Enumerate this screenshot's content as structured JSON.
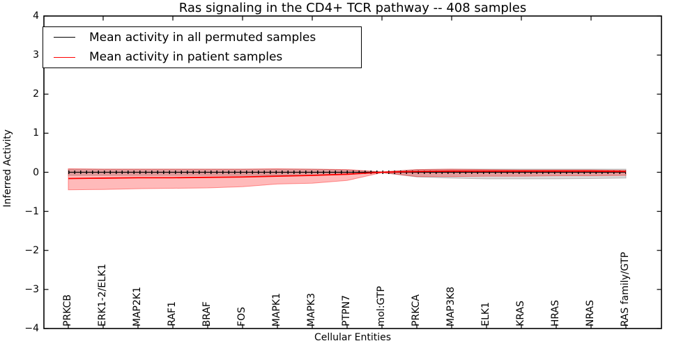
{
  "chart_data": {
    "type": "line",
    "title": "Ras signaling in the CD4+ TCR pathway -- 408 samples",
    "xlabel": "Cellular Entities",
    "ylabel": "Inferred Activity",
    "ylim": [
      -4,
      4
    ],
    "yticks": [
      4,
      3,
      2,
      1,
      0,
      -1,
      -2,
      -3,
      -4
    ],
    "ytick_labels": [
      "4",
      "3",
      "2",
      "1",
      "0",
      "−1",
      "−2",
      "−3",
      "−4"
    ],
    "categories": [
      "PRKCB",
      "ERK1-2/ELK1",
      "MAP2K1",
      "RAF1",
      "BRAF",
      "FOS",
      "MAPK1",
      "MAPK3",
      "PTPN7",
      "mol:GTP",
      "PRKCA",
      "MAP3K8",
      "ELK1",
      "KRAS",
      "HRAS",
      "NRAS",
      "RAS family/GTP"
    ],
    "grid": false,
    "legend_position": "upper left",
    "series": [
      {
        "name": "Mean activity in all permuted samples",
        "color": "#000000",
        "band_color": "rgba(0,0,0,0.15)",
        "band_edge": "rgba(0,0,0,0.22)",
        "marker": "|",
        "mean": [
          0,
          0,
          0,
          0,
          0,
          0,
          0,
          0,
          0,
          0,
          0,
          0,
          0,
          0,
          0,
          0,
          0
        ],
        "band_upper": [
          0.08,
          0.08,
          0.08,
          0.08,
          0.08,
          0.08,
          0.08,
          0.08,
          0.06,
          0.01,
          0.07,
          0.08,
          0.08,
          0.08,
          0.08,
          0.08,
          0.08
        ],
        "band_lower": [
          -0.08,
          -0.08,
          -0.08,
          -0.08,
          -0.08,
          -0.08,
          -0.08,
          -0.08,
          -0.06,
          -0.01,
          -0.12,
          -0.15,
          -0.17,
          -0.17,
          -0.17,
          -0.16,
          -0.15
        ]
      },
      {
        "name": "Mean activity in patient samples",
        "color": "#ff0000",
        "band_color": "rgba(255,0,0,0.27)",
        "band_edge": "rgba(255,0,0,0.40)",
        "marker": null,
        "mean": [
          -0.16,
          -0.15,
          -0.14,
          -0.14,
          -0.13,
          -0.12,
          -0.1,
          -0.08,
          -0.05,
          0.0,
          0.02,
          0.03,
          0.03,
          0.03,
          0.03,
          0.03,
          0.02
        ],
        "band_upper": [
          0.09,
          0.08,
          0.08,
          0.08,
          0.08,
          0.08,
          0.09,
          0.08,
          0.07,
          0.01,
          0.07,
          0.08,
          0.07,
          0.06,
          0.06,
          0.06,
          0.05
        ],
        "band_lower": [
          -0.45,
          -0.44,
          -0.42,
          -0.41,
          -0.4,
          -0.37,
          -0.3,
          -0.28,
          -0.21,
          -0.01,
          -0.11,
          -0.11,
          -0.1,
          -0.1,
          -0.09,
          -0.09,
          -0.08
        ]
      }
    ]
  }
}
